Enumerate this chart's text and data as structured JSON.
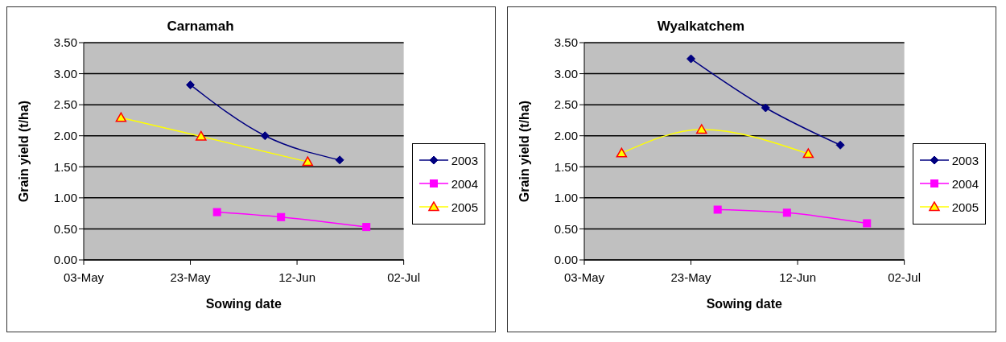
{
  "chart_data": [
    {
      "type": "line",
      "title": "Carnamah",
      "xlabel": "Sowing date",
      "ylabel": "Grain yield (t/ha)",
      "xlim": [
        "--05-03",
        "--07-02"
      ],
      "xticks": [
        {
          "value": "--05-03",
          "label": "03-May"
        },
        {
          "value": "--05-23",
          "label": "23-May"
        },
        {
          "value": "--06-12",
          "label": "12-Jun"
        },
        {
          "value": "--07-02",
          "label": "02-Jul"
        }
      ],
      "ylim": [
        0,
        3.5
      ],
      "yticks": [
        {
          "value": 0,
          "label": "0.00"
        },
        {
          "value": 0.5,
          "label": "0.50"
        },
        {
          "value": 1,
          "label": "1.00"
        },
        {
          "value": 1.5,
          "label": "1.50"
        },
        {
          "value": 2,
          "label": "2.00"
        },
        {
          "value": 2.5,
          "label": "2.50"
        },
        {
          "value": 3,
          "label": "3.00"
        },
        {
          "value": 3.5,
          "label": "3.50"
        }
      ],
      "grid": "y",
      "legend": "right",
      "series": [
        {
          "name": "2003",
          "color": "#000080",
          "marker": "diamond",
          "x": [
            "--05-23",
            "--06-06",
            "--06-20"
          ],
          "values": [
            2.82,
            2.0,
            1.61
          ]
        },
        {
          "name": "2004",
          "color": "#ff00ff",
          "marker": "square",
          "x": [
            "--05-28",
            "--06-09",
            "--06-25"
          ],
          "values": [
            0.77,
            0.69,
            0.53
          ]
        },
        {
          "name": "2005",
          "color": "#ffff00",
          "marker": "triangle",
          "x": [
            "--05-10",
            "--05-25",
            "--06-14"
          ],
          "values": [
            2.29,
            1.99,
            1.58
          ]
        }
      ]
    },
    {
      "type": "line",
      "title": "Wyalkatchem",
      "xlabel": "Sowing date",
      "ylabel": "Grain yield (t/ha)",
      "xlim": [
        "--05-03",
        "--07-02"
      ],
      "xticks": [
        {
          "value": "--05-03",
          "label": "03-May"
        },
        {
          "value": "--05-23",
          "label": "23-May"
        },
        {
          "value": "--06-12",
          "label": "12-Jun"
        },
        {
          "value": "--07-02",
          "label": "02-Jul"
        }
      ],
      "ylim": [
        0,
        3.5
      ],
      "yticks": [
        {
          "value": 0,
          "label": "0.00"
        },
        {
          "value": 0.5,
          "label": "0.50"
        },
        {
          "value": 1,
          "label": "1.00"
        },
        {
          "value": 1.5,
          "label": "1.50"
        },
        {
          "value": 2,
          "label": "2.00"
        },
        {
          "value": 2.5,
          "label": "2.50"
        },
        {
          "value": 3,
          "label": "3.00"
        },
        {
          "value": 3.5,
          "label": "3.50"
        }
      ],
      "grid": "y",
      "legend": "right",
      "series": [
        {
          "name": "2003",
          "color": "#000080",
          "marker": "diamond",
          "x": [
            "--05-23",
            "--06-06",
            "--06-20"
          ],
          "values": [
            3.24,
            2.45,
            1.85
          ]
        },
        {
          "name": "2004",
          "color": "#ff00ff",
          "marker": "square",
          "x": [
            "--05-28",
            "--06-10",
            "--06-25"
          ],
          "values": [
            0.81,
            0.76,
            0.59
          ]
        },
        {
          "name": "2005",
          "color": "#ffff00",
          "marker": "triangle",
          "x": [
            "--05-10",
            "--05-25",
            "--06-14"
          ],
          "values": [
            1.72,
            2.1,
            1.71
          ]
        }
      ]
    }
  ]
}
